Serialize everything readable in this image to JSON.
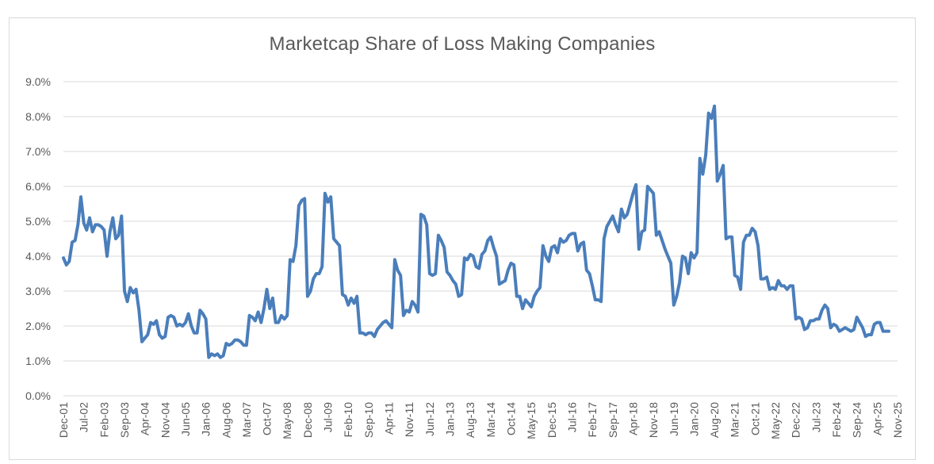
{
  "chart_data": {
    "type": "line",
    "title": "Marketcap Share of Loss Making Companies",
    "xlabel": "",
    "ylabel": "",
    "ylim": [
      0,
      9
    ],
    "y_ticks": [
      "0.0%",
      "1.0%",
      "2.0%",
      "3.0%",
      "4.0%",
      "5.0%",
      "6.0%",
      "7.0%",
      "8.0%",
      "9.0%"
    ],
    "x_tick_labels": [
      "Dec-01",
      "Jul-02",
      "Feb-03",
      "Sep-03",
      "Apr-04",
      "Nov-04",
      "Jun-05",
      "Jan-06",
      "Aug-06",
      "Mar-07",
      "Oct-07",
      "May-08",
      "Dec-08",
      "Jul-09",
      "Feb-10",
      "Sep-10",
      "Apr-11",
      "Nov-11",
      "Jun-12",
      "Jan-13",
      "Aug-13",
      "Mar-14",
      "Oct-14",
      "May-15",
      "Dec-15",
      "Jul-16",
      "Feb-17",
      "Sep-17",
      "Apr-18",
      "Nov-18",
      "Jun-19",
      "Jan-20",
      "Aug-20",
      "Mar-21",
      "Oct-21",
      "May-22",
      "Dec-22",
      "Jul-23",
      "Feb-24",
      "Sep-24",
      "Apr-25",
      "Nov-25"
    ],
    "series": [
      {
        "name": "Marketcap Share of Loss Making Companies",
        "color": "#4a7ebb",
        "start": "Dec-01",
        "frequency": "monthly",
        "keypoints": [
          [
            0,
            3.95
          ],
          [
            1,
            3.75
          ],
          [
            2,
            3.85
          ],
          [
            3,
            4.4
          ],
          [
            4,
            4.45
          ],
          [
            5,
            4.9
          ],
          [
            6,
            5.7
          ],
          [
            7,
            4.95
          ],
          [
            8,
            4.75
          ],
          [
            9,
            5.1
          ],
          [
            10,
            4.7
          ],
          [
            11,
            4.9
          ],
          [
            12,
            4.9
          ],
          [
            13,
            4.85
          ],
          [
            14,
            4.75
          ],
          [
            15,
            4.0
          ],
          [
            16,
            4.7
          ],
          [
            17,
            5.1
          ],
          [
            18,
            4.5
          ],
          [
            19,
            4.6
          ],
          [
            20,
            5.15
          ],
          [
            21,
            3.0
          ],
          [
            22,
            2.7
          ],
          [
            23,
            3.1
          ],
          [
            24,
            2.95
          ],
          [
            25,
            3.05
          ],
          [
            26,
            2.45
          ],
          [
            27,
            1.55
          ],
          [
            28,
            1.65
          ],
          [
            29,
            1.75
          ],
          [
            30,
            2.1
          ],
          [
            31,
            2.05
          ],
          [
            32,
            2.15
          ],
          [
            33,
            1.75
          ],
          [
            34,
            1.65
          ],
          [
            35,
            1.7
          ],
          [
            36,
            2.25
          ],
          [
            37,
            2.3
          ],
          [
            38,
            2.25
          ],
          [
            39,
            2.0
          ],
          [
            40,
            2.05
          ],
          [
            41,
            2.0
          ],
          [
            42,
            2.1
          ],
          [
            43,
            2.35
          ],
          [
            44,
            2.0
          ],
          [
            45,
            1.8
          ],
          [
            46,
            1.8
          ],
          [
            47,
            2.45
          ],
          [
            48,
            2.35
          ],
          [
            49,
            2.2
          ],
          [
            50,
            1.1
          ],
          [
            51,
            1.2
          ],
          [
            52,
            1.15
          ],
          [
            53,
            1.2
          ],
          [
            54,
            1.1
          ],
          [
            55,
            1.15
          ],
          [
            56,
            1.5
          ],
          [
            57,
            1.45
          ],
          [
            58,
            1.5
          ],
          [
            59,
            1.6
          ],
          [
            60,
            1.6
          ],
          [
            61,
            1.55
          ],
          [
            62,
            1.45
          ],
          [
            63,
            1.45
          ],
          [
            64,
            2.3
          ],
          [
            65,
            2.25
          ],
          [
            66,
            2.15
          ],
          [
            67,
            2.4
          ],
          [
            68,
            2.1
          ],
          [
            69,
            2.5
          ],
          [
            70,
            3.05
          ],
          [
            71,
            2.5
          ],
          [
            72,
            2.8
          ],
          [
            73,
            2.1
          ],
          [
            74,
            2.1
          ],
          [
            75,
            2.3
          ],
          [
            76,
            2.2
          ],
          [
            77,
            2.3
          ],
          [
            78,
            3.9
          ],
          [
            79,
            3.85
          ],
          [
            80,
            4.3
          ],
          [
            81,
            5.45
          ],
          [
            82,
            5.6
          ],
          [
            83,
            5.65
          ],
          [
            84,
            2.85
          ],
          [
            85,
            3.0
          ],
          [
            86,
            3.35
          ],
          [
            87,
            3.5
          ],
          [
            88,
            3.5
          ],
          [
            89,
            3.7
          ],
          [
            90,
            5.8
          ],
          [
            91,
            5.55
          ],
          [
            92,
            5.7
          ],
          [
            93,
            4.5
          ],
          [
            94,
            4.4
          ],
          [
            95,
            4.3
          ],
          [
            96,
            2.9
          ],
          [
            97,
            2.85
          ],
          [
            98,
            2.6
          ],
          [
            99,
            2.8
          ],
          [
            100,
            2.65
          ],
          [
            101,
            2.85
          ],
          [
            102,
            1.8
          ],
          [
            103,
            1.8
          ],
          [
            104,
            1.75
          ],
          [
            105,
            1.8
          ],
          [
            106,
            1.8
          ],
          [
            107,
            1.7
          ],
          [
            108,
            1.9
          ],
          [
            109,
            2.0
          ],
          [
            110,
            2.1
          ],
          [
            111,
            2.15
          ],
          [
            112,
            2.05
          ],
          [
            113,
            1.95
          ],
          [
            114,
            3.9
          ],
          [
            115,
            3.6
          ],
          [
            116,
            3.45
          ],
          [
            117,
            2.3
          ],
          [
            118,
            2.45
          ],
          [
            119,
            2.4
          ],
          [
            120,
            2.7
          ],
          [
            121,
            2.6
          ],
          [
            122,
            2.4
          ],
          [
            123,
            5.2
          ],
          [
            124,
            5.15
          ],
          [
            125,
            4.9
          ],
          [
            126,
            3.5
          ],
          [
            127,
            3.45
          ],
          [
            128,
            3.5
          ],
          [
            129,
            4.6
          ],
          [
            130,
            4.45
          ],
          [
            131,
            4.25
          ],
          [
            132,
            3.55
          ],
          [
            133,
            3.45
          ],
          [
            134,
            3.3
          ],
          [
            135,
            3.2
          ],
          [
            136,
            2.85
          ],
          [
            137,
            2.9
          ],
          [
            138,
            3.95
          ],
          [
            139,
            3.9
          ],
          [
            140,
            4.05
          ],
          [
            141,
            4.0
          ],
          [
            142,
            3.7
          ],
          [
            143,
            3.65
          ],
          [
            144,
            4.05
          ],
          [
            145,
            4.15
          ],
          [
            146,
            4.45
          ],
          [
            147,
            4.55
          ],
          [
            148,
            4.25
          ],
          [
            149,
            4.0
          ],
          [
            150,
            3.2
          ],
          [
            151,
            3.25
          ],
          [
            152,
            3.3
          ],
          [
            153,
            3.6
          ],
          [
            154,
            3.8
          ],
          [
            155,
            3.75
          ],
          [
            156,
            2.85
          ],
          [
            157,
            2.85
          ],
          [
            158,
            2.5
          ],
          [
            159,
            2.75
          ],
          [
            160,
            2.65
          ],
          [
            161,
            2.55
          ],
          [
            162,
            2.85
          ],
          [
            163,
            3.0
          ],
          [
            164,
            3.1
          ],
          [
            165,
            4.3
          ],
          [
            166,
            4.0
          ],
          [
            167,
            3.85
          ],
          [
            168,
            4.25
          ],
          [
            169,
            4.3
          ],
          [
            170,
            4.1
          ],
          [
            171,
            4.5
          ],
          [
            172,
            4.4
          ],
          [
            173,
            4.45
          ],
          [
            174,
            4.6
          ],
          [
            175,
            4.65
          ],
          [
            176,
            4.65
          ],
          [
            177,
            4.15
          ],
          [
            178,
            4.35
          ],
          [
            179,
            4.4
          ],
          [
            180,
            3.6
          ],
          [
            181,
            3.5
          ],
          [
            182,
            3.15
          ],
          [
            183,
            2.75
          ],
          [
            184,
            2.75
          ],
          [
            185,
            2.7
          ],
          [
            186,
            4.5
          ],
          [
            187,
            4.85
          ],
          [
            188,
            5.0
          ],
          [
            189,
            5.15
          ],
          [
            190,
            4.9
          ],
          [
            191,
            4.7
          ],
          [
            192,
            5.35
          ],
          [
            193,
            5.1
          ],
          [
            194,
            5.2
          ],
          [
            195,
            5.5
          ],
          [
            196,
            5.8
          ],
          [
            197,
            6.05
          ],
          [
            198,
            4.2
          ],
          [
            199,
            4.7
          ],
          [
            200,
            4.75
          ],
          [
            201,
            6.0
          ],
          [
            202,
            5.9
          ],
          [
            203,
            5.8
          ],
          [
            204,
            4.6
          ],
          [
            205,
            4.7
          ],
          [
            206,
            4.45
          ],
          [
            207,
            4.2
          ],
          [
            208,
            4.0
          ],
          [
            209,
            3.8
          ],
          [
            210,
            2.6
          ],
          [
            211,
            2.85
          ],
          [
            212,
            3.25
          ],
          [
            213,
            4.0
          ],
          [
            214,
            3.95
          ],
          [
            215,
            3.5
          ],
          [
            216,
            4.1
          ],
          [
            217,
            3.95
          ],
          [
            218,
            4.1
          ],
          [
            219,
            6.8
          ],
          [
            220,
            6.35
          ],
          [
            221,
            6.9
          ],
          [
            222,
            8.1
          ],
          [
            223,
            7.95
          ],
          [
            224,
            8.3
          ],
          [
            225,
            6.15
          ],
          [
            226,
            6.35
          ],
          [
            227,
            6.6
          ],
          [
            228,
            4.5
          ],
          [
            229,
            4.55
          ],
          [
            230,
            4.55
          ],
          [
            231,
            3.45
          ],
          [
            232,
            3.4
          ],
          [
            233,
            3.05
          ],
          [
            234,
            4.4
          ],
          [
            235,
            4.6
          ],
          [
            236,
            4.6
          ],
          [
            237,
            4.8
          ],
          [
            238,
            4.7
          ],
          [
            239,
            4.3
          ],
          [
            240,
            3.35
          ],
          [
            241,
            3.35
          ],
          [
            242,
            3.4
          ],
          [
            243,
            3.05
          ],
          [
            244,
            3.1
          ],
          [
            245,
            3.05
          ],
          [
            246,
            3.3
          ],
          [
            247,
            3.15
          ],
          [
            248,
            3.15
          ],
          [
            249,
            3.05
          ],
          [
            250,
            3.15
          ],
          [
            251,
            3.15
          ],
          [
            252,
            2.2
          ],
          [
            253,
            2.25
          ],
          [
            254,
            2.2
          ],
          [
            255,
            1.9
          ],
          [
            256,
            1.95
          ],
          [
            257,
            2.15
          ],
          [
            258,
            2.15
          ],
          [
            259,
            2.2
          ],
          [
            260,
            2.2
          ],
          [
            261,
            2.45
          ],
          [
            262,
            2.6
          ],
          [
            263,
            2.5
          ],
          [
            264,
            1.95
          ],
          [
            265,
            2.05
          ],
          [
            266,
            2.0
          ],
          [
            267,
            1.85
          ],
          [
            268,
            1.9
          ],
          [
            269,
            1.95
          ],
          [
            270,
            1.9
          ],
          [
            271,
            1.85
          ],
          [
            272,
            1.9
          ],
          [
            273,
            2.25
          ],
          [
            274,
            2.1
          ],
          [
            275,
            1.95
          ],
          [
            276,
            1.7
          ],
          [
            277,
            1.75
          ],
          [
            278,
            1.75
          ],
          [
            279,
            2.05
          ],
          [
            280,
            2.1
          ],
          [
            281,
            2.1
          ],
          [
            282,
            1.85
          ],
          [
            283,
            1.85
          ],
          [
            284,
            1.85
          ]
        ]
      }
    ]
  }
}
